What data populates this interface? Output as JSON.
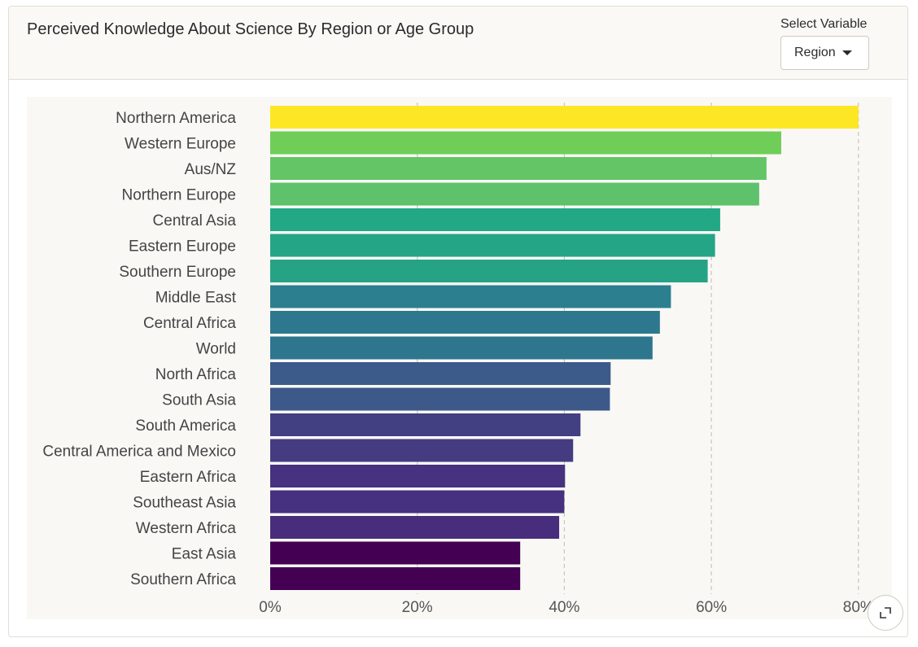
{
  "header": {
    "title": "Perceived Knowledge About Science By Region or Age Group",
    "select_label": "Select Variable",
    "select_value": "Region"
  },
  "icons": {
    "dropdown": "caret-down-icon",
    "expand": "expand-icon"
  },
  "colors": {
    "plot_background": "#f9f8f5",
    "gridline": "#c9c5bd"
  },
  "chart_data": {
    "type": "bar",
    "orientation": "horizontal",
    "title": "",
    "xlabel": "",
    "ylabel": "",
    "xlim": [
      0,
      82
    ],
    "x_ticks": [
      0,
      20,
      40,
      60,
      80
    ],
    "x_tick_labels": [
      "0%",
      "20%",
      "40%",
      "60%",
      "80%"
    ],
    "grid": "vertical dashed",
    "categories": [
      "Northern America",
      "Western Europe",
      "Aus/NZ",
      "Northern Europe",
      "Central Asia",
      "Eastern Europe",
      "Southern Europe",
      "Middle East",
      "Central Africa",
      "World",
      "North Africa",
      "South Asia",
      "South America",
      "Central America and Mexico",
      "Eastern Africa",
      "Southeast Asia",
      "Western Africa",
      "East Asia",
      "Southern Africa"
    ],
    "values": [
      80,
      69.5,
      67.5,
      66.5,
      61.2,
      60.5,
      59.5,
      54.5,
      53,
      52,
      46.3,
      46.2,
      42.2,
      41.2,
      40.1,
      40,
      39.3,
      34,
      34
    ],
    "colors": [
      "#fde725",
      "#6ece58",
      "#63c565",
      "#5ec16c",
      "#22a884",
      "#24a586",
      "#26a385",
      "#2c7f8e",
      "#2d788e",
      "#2d768e",
      "#3c5a8a",
      "#3d598a",
      "#423f83",
      "#443b81",
      "#46327e",
      "#463080",
      "#472d7b",
      "#440154",
      "#440154"
    ]
  }
}
